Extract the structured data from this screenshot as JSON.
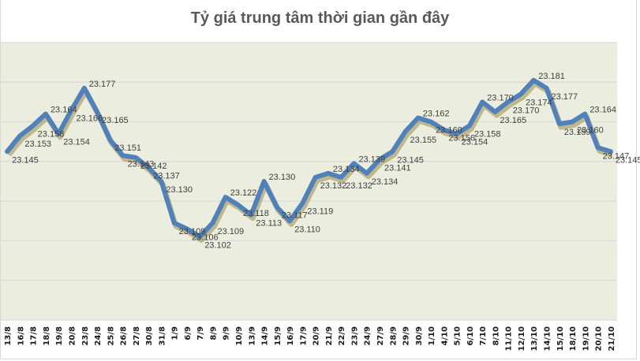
{
  "chart_data": {
    "type": "line",
    "title": "Tỷ giá trung tâm thời gian gần đây",
    "xlabel": "",
    "ylabel": "",
    "ylim": [
      23.06,
      23.2
    ],
    "grid": true,
    "gridline_step": 0.02,
    "legend": "none",
    "categories": [
      "13/8",
      "16/8",
      "17/8",
      "18/8",
      "19/8",
      "20/8",
      "23/8",
      "24/8",
      "25/8",
      "26/8",
      "27/8",
      "30/8",
      "31/8",
      "1/9",
      "6/9",
      "7/9",
      "8/9",
      "9/9",
      "10/9",
      "13/9",
      "14/9",
      "15/9",
      "16/9",
      "17/9",
      "20/9",
      "21/9",
      "22/9",
      "23/9",
      "24/9",
      "27/9",
      "28/9",
      "29/9",
      "30/9",
      "1/10",
      "4/10",
      "5/10",
      "6/10",
      "7/10",
      "8/10",
      "11/10",
      "12/10",
      "13/10",
      "14/10",
      "15/10",
      "18/10",
      "19/10",
      "20/10",
      "21/10"
    ],
    "series": [
      {
        "name": "Tỷ giá trung tâm",
        "color": "#4F81BD",
        "values": [
          23.145,
          23.153,
          23.158,
          23.164,
          23.154,
          23.166,
          23.177,
          23.165,
          23.151,
          23.143,
          23.142,
          23.137,
          23.13,
          23.109,
          23.106,
          23.102,
          23.109,
          23.122,
          23.118,
          23.113,
          23.13,
          23.117,
          23.11,
          23.119,
          23.132,
          23.134,
          23.132,
          23.139,
          23.134,
          23.141,
          23.145,
          23.155,
          23.162,
          23.16,
          23.156,
          23.154,
          23.158,
          23.17,
          23.165,
          23.17,
          23.174,
          23.181,
          23.177,
          23.159,
          23.16,
          23.164,
          23.147,
          23.145
        ]
      }
    ]
  },
  "colors": {
    "plot_bg": "#EBEEDE",
    "grid": "#D9D9D9",
    "line": "#4F81BD",
    "shadow": "#9C8A45"
  }
}
